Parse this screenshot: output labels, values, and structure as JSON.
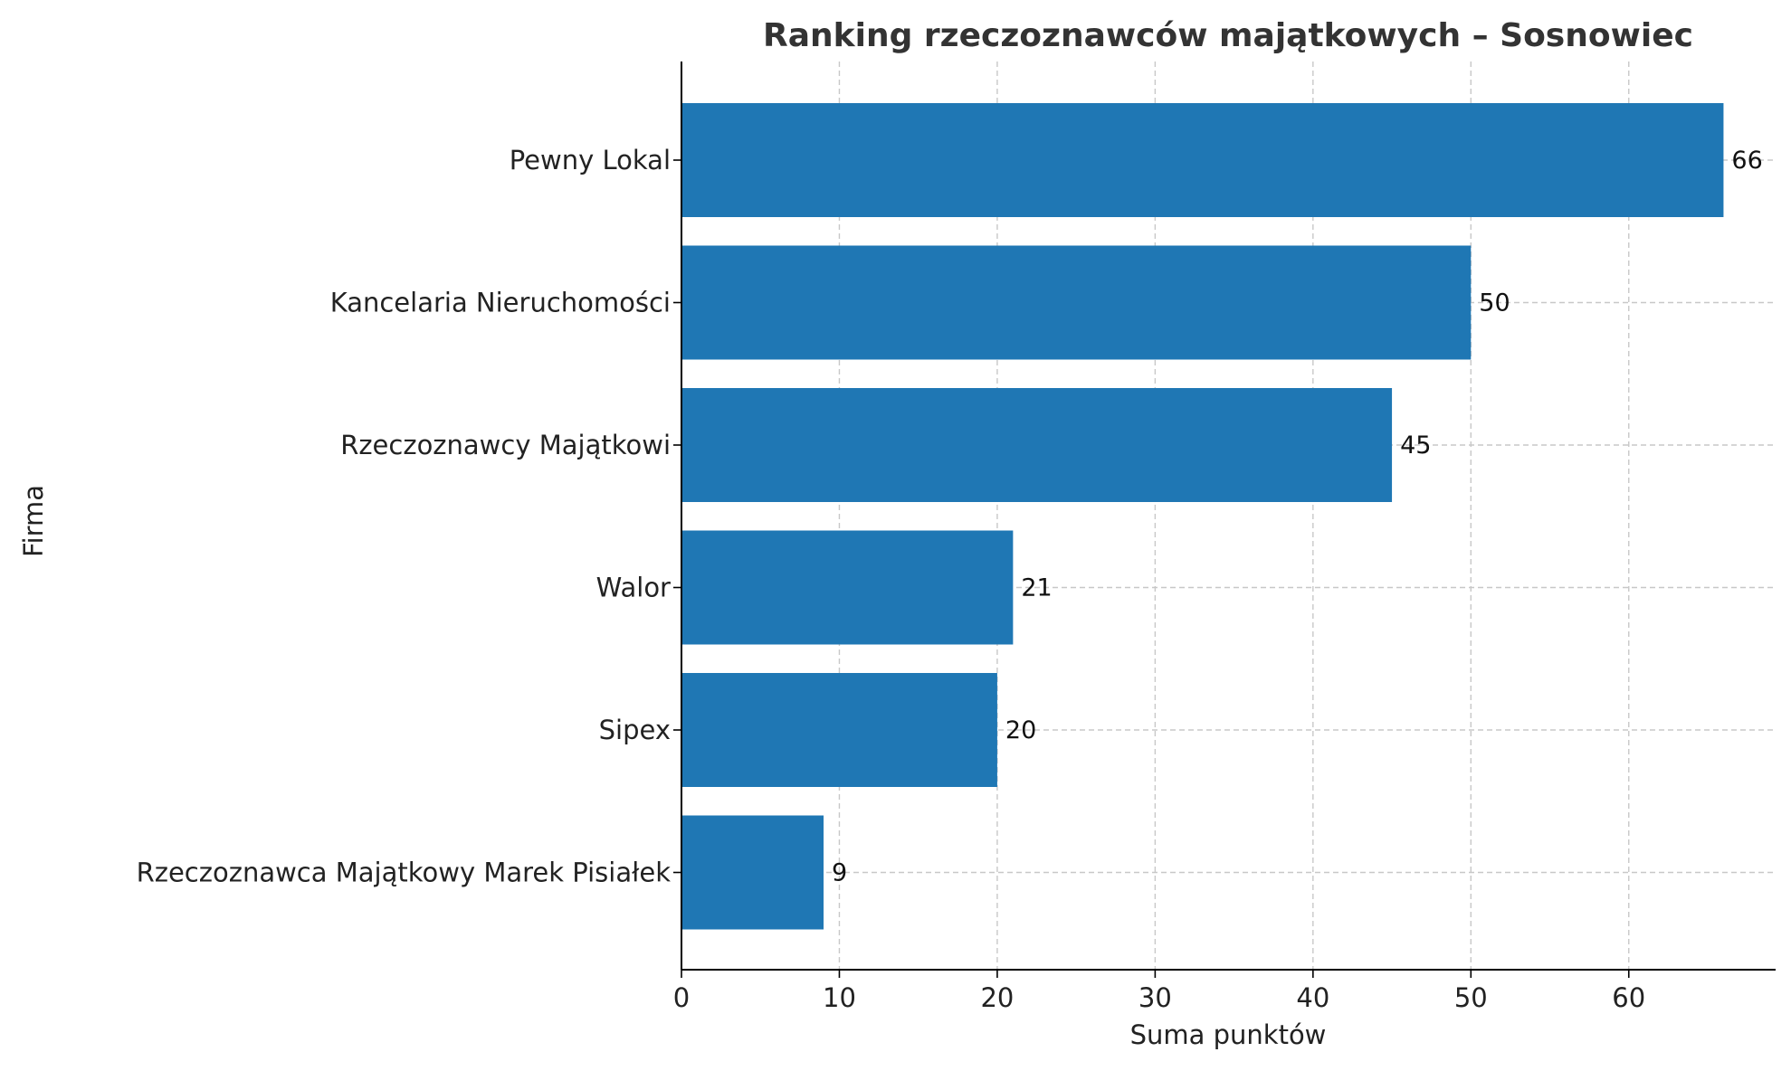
{
  "chart_data": {
    "type": "bar",
    "orientation": "horizontal",
    "title": "Ranking rzeczoznawców majątkowych – Sosnowiec",
    "xlabel": "Suma punktów",
    "ylabel": "Firma",
    "categories": [
      "Pewny Lokal",
      "Kancelaria Nieruchomości",
      "Rzeczoznawcy Majątkowi",
      "Walor",
      "Sipex",
      "Rzeczoznawca Majątkowy Marek Pisiałek"
    ],
    "values": [
      66,
      50,
      45,
      21,
      20,
      9
    ],
    "xlim": [
      0,
      69.3
    ],
    "xticks": [
      "0",
      "10",
      "20",
      "30",
      "40",
      "50",
      "60"
    ],
    "grid": true,
    "grid_style": "dashed",
    "legend": "none",
    "colors": {
      "bar": "#1f77b4",
      "grid": "#c8c8c8",
      "axis": "#000000"
    }
  }
}
